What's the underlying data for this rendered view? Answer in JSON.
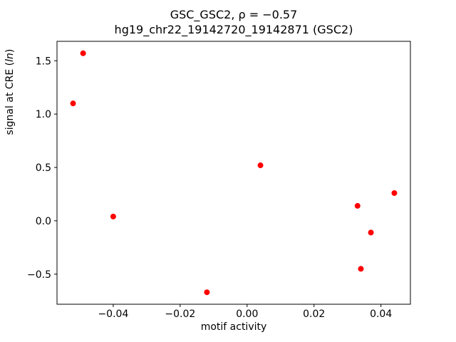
{
  "chart_data": {
    "type": "scatter",
    "title": "GSC_GSC2, ρ = −0.57",
    "subtitle": "hg19_chr22_19142720_19142871 (GSC2)",
    "xlabel": "motif activity",
    "ylabel": "signal at CRE (ln)",
    "ylabel_parts": {
      "prefix": "signal at CRE (",
      "italic": "ln",
      "suffix": ")"
    },
    "marker_color": "#ff0000",
    "marker_radius": 4,
    "grid": false,
    "legend": "none",
    "xlim": [
      -0.0568,
      0.0488
    ],
    "ylim": [
      -0.782,
      1.682
    ],
    "xticks": [
      {
        "value": -0.04,
        "label": "−0.04"
      },
      {
        "value": -0.02,
        "label": "−0.02"
      },
      {
        "value": 0.0,
        "label": "0.00"
      },
      {
        "value": 0.02,
        "label": "0.02"
      },
      {
        "value": 0.04,
        "label": "0.04"
      }
    ],
    "yticks": [
      {
        "value": -0.5,
        "label": "−0.5"
      },
      {
        "value": 0.0,
        "label": "0.0"
      },
      {
        "value": 0.5,
        "label": "0.5"
      },
      {
        "value": 1.0,
        "label": "1.0"
      },
      {
        "value": 1.5,
        "label": "1.5"
      }
    ],
    "points": [
      {
        "x": -0.052,
        "y": 1.1
      },
      {
        "x": -0.049,
        "y": 1.57
      },
      {
        "x": -0.04,
        "y": 0.04
      },
      {
        "x": -0.012,
        "y": -0.67
      },
      {
        "x": 0.004,
        "y": 0.52
      },
      {
        "x": 0.033,
        "y": 0.14
      },
      {
        "x": 0.034,
        "y": -0.45
      },
      {
        "x": 0.037,
        "y": -0.11
      },
      {
        "x": 0.044,
        "y": 0.26
      }
    ]
  }
}
